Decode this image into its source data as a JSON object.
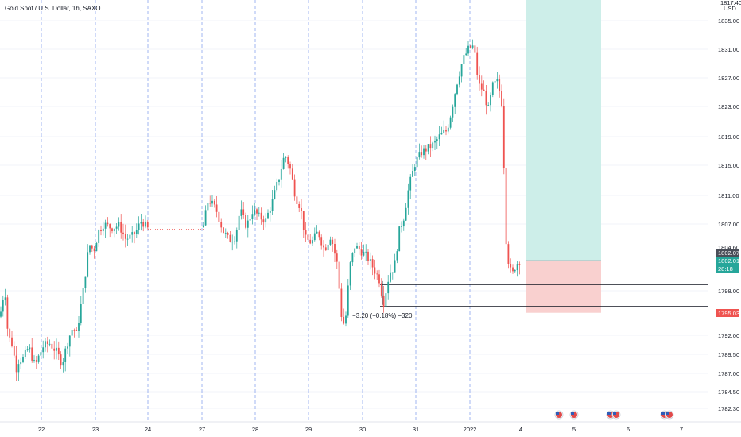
{
  "header": {
    "symbol_title": "Gold Spot / U.S. Dollar, 1h, SAXO"
  },
  "annotations": {
    "measure_text": "−3.20 (−0.18%) −320"
  },
  "colors": {
    "up": "#26a69a",
    "down": "#ef5350",
    "vgrid": "#5b7fe6",
    "profit_zone": "#cdeee9",
    "loss_zone": "#f9d0cf",
    "price_line": "#2bb3a3",
    "last_tag": "#26a69a",
    "stop_tag": "#ef5350",
    "dark_tag": "#4a4e58"
  },
  "chart_data": {
    "type": "candlestick",
    "title": "Gold Spot / U.S. Dollar, 1h, SAXO",
    "y_unit": "USD",
    "ylim": [
      1780.0,
      1838.6
    ],
    "y_ticks": [
      "1835.00",
      "1831.00",
      "1827.00",
      "1823.00",
      "1819.00",
      "1815.00",
      "1811.00",
      "1807.00",
      "1798.00",
      "1792.00",
      "1789.50",
      "1787.00",
      "1784.50",
      "1782.30"
    ],
    "y_partial_ticks": [
      "1817.40",
      "1804.60"
    ],
    "x_ticks": [
      "22",
      "23",
      "24",
      "27",
      "28",
      "29",
      "30",
      "31",
      "2022",
      "4",
      "5",
      "6",
      "7"
    ],
    "price_tags": [
      {
        "label": "1802.07",
        "value": 1802.07,
        "style": "dark"
      },
      {
        "label": "1802.01",
        "value": 1802.01,
        "style": "last"
      },
      {
        "label": "28:18",
        "style": "last"
      },
      {
        "label": "1795.03",
        "value": 1795.03,
        "style": "stop"
      }
    ],
    "position": {
      "entry": 1802.07,
      "stop": 1795.03,
      "target_above_view": true
    },
    "horizontal_lines": [
      1798.8,
      1795.9
    ],
    "dotted_gap_line": 1806.3,
    "measure": {
      "from": 1799.3,
      "to": 1796.1
    },
    "events": [
      "us-flag",
      "us-flag",
      "us-flag",
      "us-flag",
      "us-flag",
      "us-flag"
    ],
    "swing_path": [
      [
        0,
        1794.5
      ],
      [
        6,
        1798.6
      ],
      [
        10,
        1792.0
      ],
      [
        16,
        1790.7
      ],
      [
        20,
        1787.5
      ],
      [
        24,
        1788.9
      ],
      [
        30,
        1789.0
      ],
      [
        36,
        1790.5
      ],
      [
        44,
        1788.0
      ],
      [
        54,
        1790.5
      ],
      [
        62,
        1791.0
      ],
      [
        70,
        1790.0
      ],
      [
        78,
        1788.3
      ],
      [
        86,
        1791.5
      ],
      [
        92,
        1793.2
      ],
      [
        96,
        1792.0
      ],
      [
        104,
        1797.5
      ],
      [
        108,
        1801.0
      ],
      [
        112,
        1804.3
      ],
      [
        118,
        1803.4
      ],
      [
        124,
        1806.0
      ],
      [
        130,
        1807.0
      ],
      [
        140,
        1806.5
      ],
      [
        150,
        1806.8
      ],
      [
        158,
        1805.0
      ],
      [
        166,
        1805.3
      ],
      [
        172,
        1806.2
      ],
      [
        178,
        1807.5
      ],
      [
        186,
        1806.3
      ],
      [
        256,
        1806.8
      ],
      [
        262,
        1810.5
      ],
      [
        272,
        1809.0
      ],
      [
        280,
        1806.2
      ],
      [
        288,
        1804.8
      ],
      [
        296,
        1805.3
      ],
      [
        302,
        1809.0
      ],
      [
        310,
        1806.7
      ],
      [
        318,
        1809.0
      ],
      [
        326,
        1808.0
      ],
      [
        334,
        1807.5
      ],
      [
        342,
        1810.0
      ],
      [
        350,
        1813.0
      ],
      [
        358,
        1816.5
      ],
      [
        364,
        1815.0
      ],
      [
        372,
        1810.7
      ],
      [
        378,
        1809.3
      ],
      [
        384,
        1805.0
      ],
      [
        392,
        1804.5
      ],
      [
        400,
        1806.0
      ],
      [
        408,
        1803.5
      ],
      [
        416,
        1805.5
      ],
      [
        424,
        1801.6
      ],
      [
        430,
        1794.0
      ],
      [
        434,
        1793.3
      ],
      [
        440,
        1801.3
      ],
      [
        446,
        1804.0
      ],
      [
        454,
        1803.4
      ],
      [
        462,
        1802.5
      ],
      [
        470,
        1801.0
      ],
      [
        478,
        1799.3
      ],
      [
        482,
        1796.1
      ],
      [
        490,
        1800.5
      ],
      [
        496,
        1801.2
      ],
      [
        502,
        1806.0
      ],
      [
        508,
        1808.0
      ],
      [
        514,
        1812.0
      ],
      [
        522,
        1815.3
      ],
      [
        530,
        1816.8
      ],
      [
        538,
        1817.4
      ],
      [
        546,
        1818.0
      ],
      [
        554,
        1819.2
      ],
      [
        562,
        1819.8
      ],
      [
        568,
        1822.5
      ],
      [
        574,
        1826.0
      ],
      [
        582,
        1829.5
      ],
      [
        590,
        1831.2
      ],
      [
        596,
        1831.4
      ],
      [
        602,
        1826.0
      ],
      [
        608,
        1825.2
      ],
      [
        614,
        1822.5
      ],
      [
        620,
        1826.0
      ],
      [
        626,
        1826.4
      ],
      [
        632,
        1823.0
      ],
      [
        636,
        1805.5
      ],
      [
        640,
        1801.5
      ],
      [
        644,
        1800.0
      ],
      [
        648,
        1801.3
      ],
      [
        652,
        1802.0
      ],
      [
        656,
        1802.1
      ]
    ]
  }
}
